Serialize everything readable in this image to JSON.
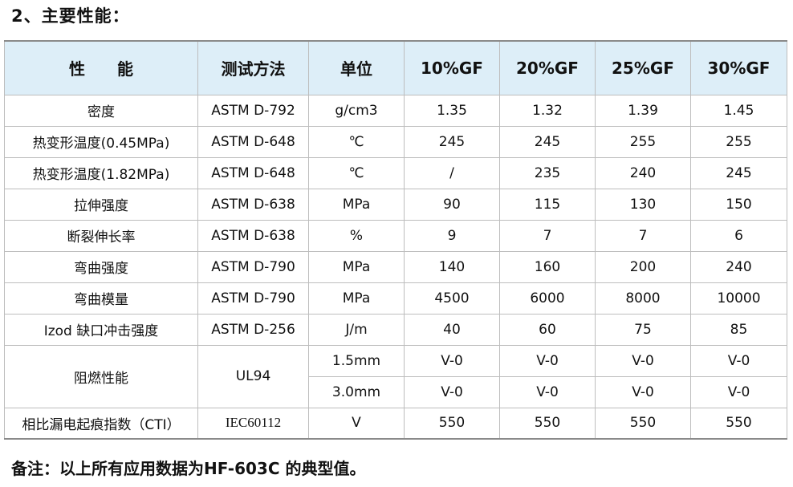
{
  "section_title": "2、主要性能：",
  "table": {
    "headers": [
      "性　　能",
      "测试方法",
      "单位",
      "10%GF",
      "20%GF",
      "25%GF",
      "30%GF"
    ],
    "rows": [
      {
        "property": "密度",
        "method": "ASTM D-792",
        "unit": "g/cm3",
        "values": [
          "1.35",
          "1.32",
          "1.39",
          "1.45"
        ]
      },
      {
        "property": "热变形温度(0.45MPa)",
        "method": "ASTM D-648",
        "unit": "℃",
        "values": [
          "245",
          "245",
          "255",
          "255"
        ]
      },
      {
        "property": "热变形温度(1.82MPa)",
        "method": "ASTM D-648",
        "unit": "℃",
        "values": [
          "/",
          "235",
          "240",
          "245"
        ]
      },
      {
        "property": "拉伸强度",
        "method": "ASTM D-638",
        "unit": "MPa",
        "values": [
          "90",
          "115",
          "130",
          "150"
        ]
      },
      {
        "property": "断裂伸长率",
        "method": "ASTM D-638",
        "unit": "%",
        "values": [
          "9",
          "7",
          "7",
          "6"
        ]
      },
      {
        "property": "弯曲强度",
        "method": "ASTM D-790",
        "unit": "MPa",
        "values": [
          "140",
          "160",
          "200",
          "240"
        ]
      },
      {
        "property": "弯曲模量",
        "method": "ASTM D-790",
        "unit": "MPa",
        "values": [
          "4500",
          "6000",
          "8000",
          "10000"
        ]
      },
      {
        "property": "Izod 缺口冲击强度",
        "method": "ASTM D-256",
        "unit": "J/m",
        "values": [
          "40",
          "60",
          "75",
          "85"
        ]
      }
    ],
    "flame": {
      "property": "阻燃性能",
      "method": "UL94",
      "subrows": [
        {
          "unit": "1.5mm",
          "values": [
            "V-0",
            "V-0",
            "V-0",
            "V-0"
          ]
        },
        {
          "unit": "3.0mm",
          "values": [
            "V-0",
            "V-0",
            "V-0",
            "V-0"
          ]
        }
      ]
    },
    "cti": {
      "property": "相比漏电起痕指数（CTI）",
      "method": "IEC60112",
      "unit": "V",
      "values": [
        "550",
        "550",
        "550",
        "550"
      ]
    }
  },
  "footnote": "备注：以上所有应用数据为HF-603C 的典型值。"
}
